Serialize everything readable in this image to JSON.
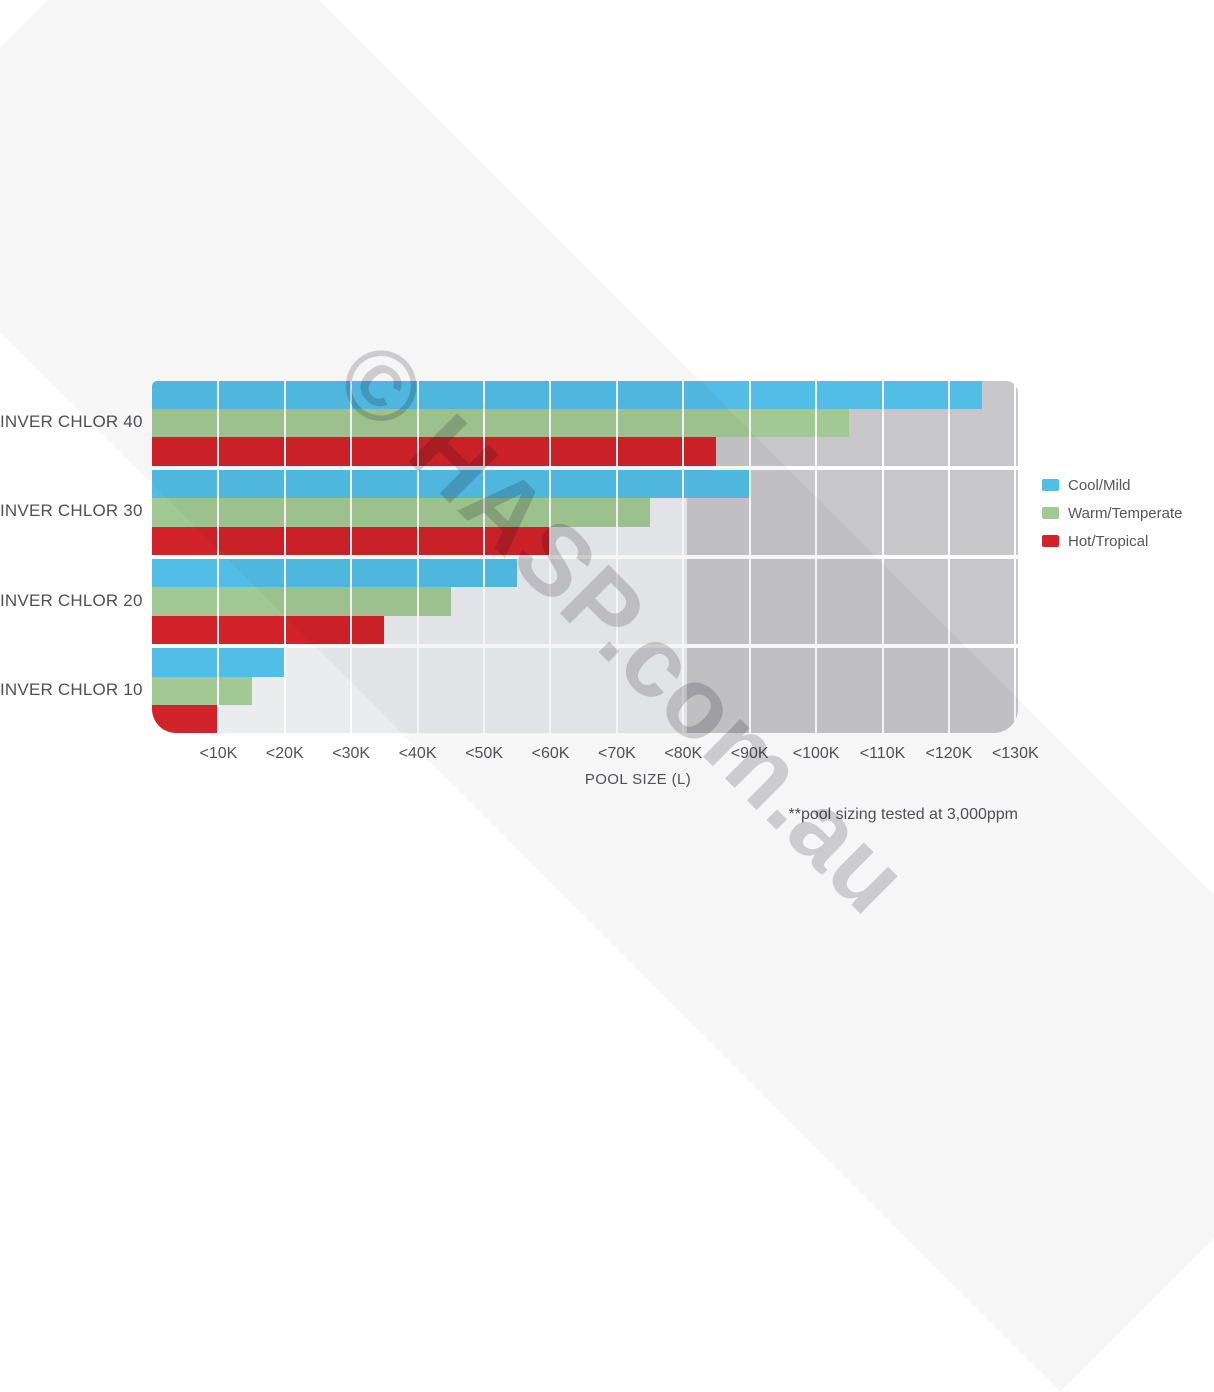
{
  "watermark": {
    "text": "© HASP.com.au"
  },
  "footnote": "**pool sizing tested at 3,000ppm",
  "colors": {
    "cool_mild_blue": "#52BDE6",
    "warm_temperate_green": "#A2C893",
    "hot_tropical_red": "#D2222A",
    "plot_bg_light": "#EBECEE",
    "plot_bg_dark": "#C7C7C9",
    "gridline": "#FFFFFF",
    "text_gray": "#525356"
  },
  "chart_data": {
    "type": "bar",
    "orientation": "horizontal",
    "title": "",
    "xlabel": "POOL SIZE (L)",
    "categories": [
      "INVER CHLOR 40",
      "INVER CHLOR 30",
      "INVER CHLOR 20",
      "INVER CHLOR 10"
    ],
    "series": [
      {
        "name": "Cool/Mild",
        "color": "#52BDE6",
        "values_liters_k": [
          125,
          90,
          55,
          20
        ]
      },
      {
        "name": "Warm/Temperate",
        "color": "#A2C893",
        "values_liters_k": [
          105,
          75,
          45,
          15
        ]
      },
      {
        "name": "Hot/Tropical",
        "color": "#D2222A",
        "values_liters_k": [
          85,
          60,
          35,
          10
        ]
      }
    ],
    "x_tick_labels": [
      "<10K",
      "<20K",
      "<30K",
      "<40K",
      "<50K",
      "<60K",
      "<70K",
      "<80K",
      "<90K",
      "<100K",
      "<110K",
      "<120K",
      "<130K"
    ],
    "x_tick_values_k": [
      10,
      20,
      30,
      40,
      50,
      60,
      70,
      80,
      90,
      100,
      110,
      120,
      130
    ],
    "xlim_k": [
      0,
      130.4
    ],
    "grid": "vertical white gridlines every 10K",
    "legend_position": "right",
    "units": "liters"
  }
}
